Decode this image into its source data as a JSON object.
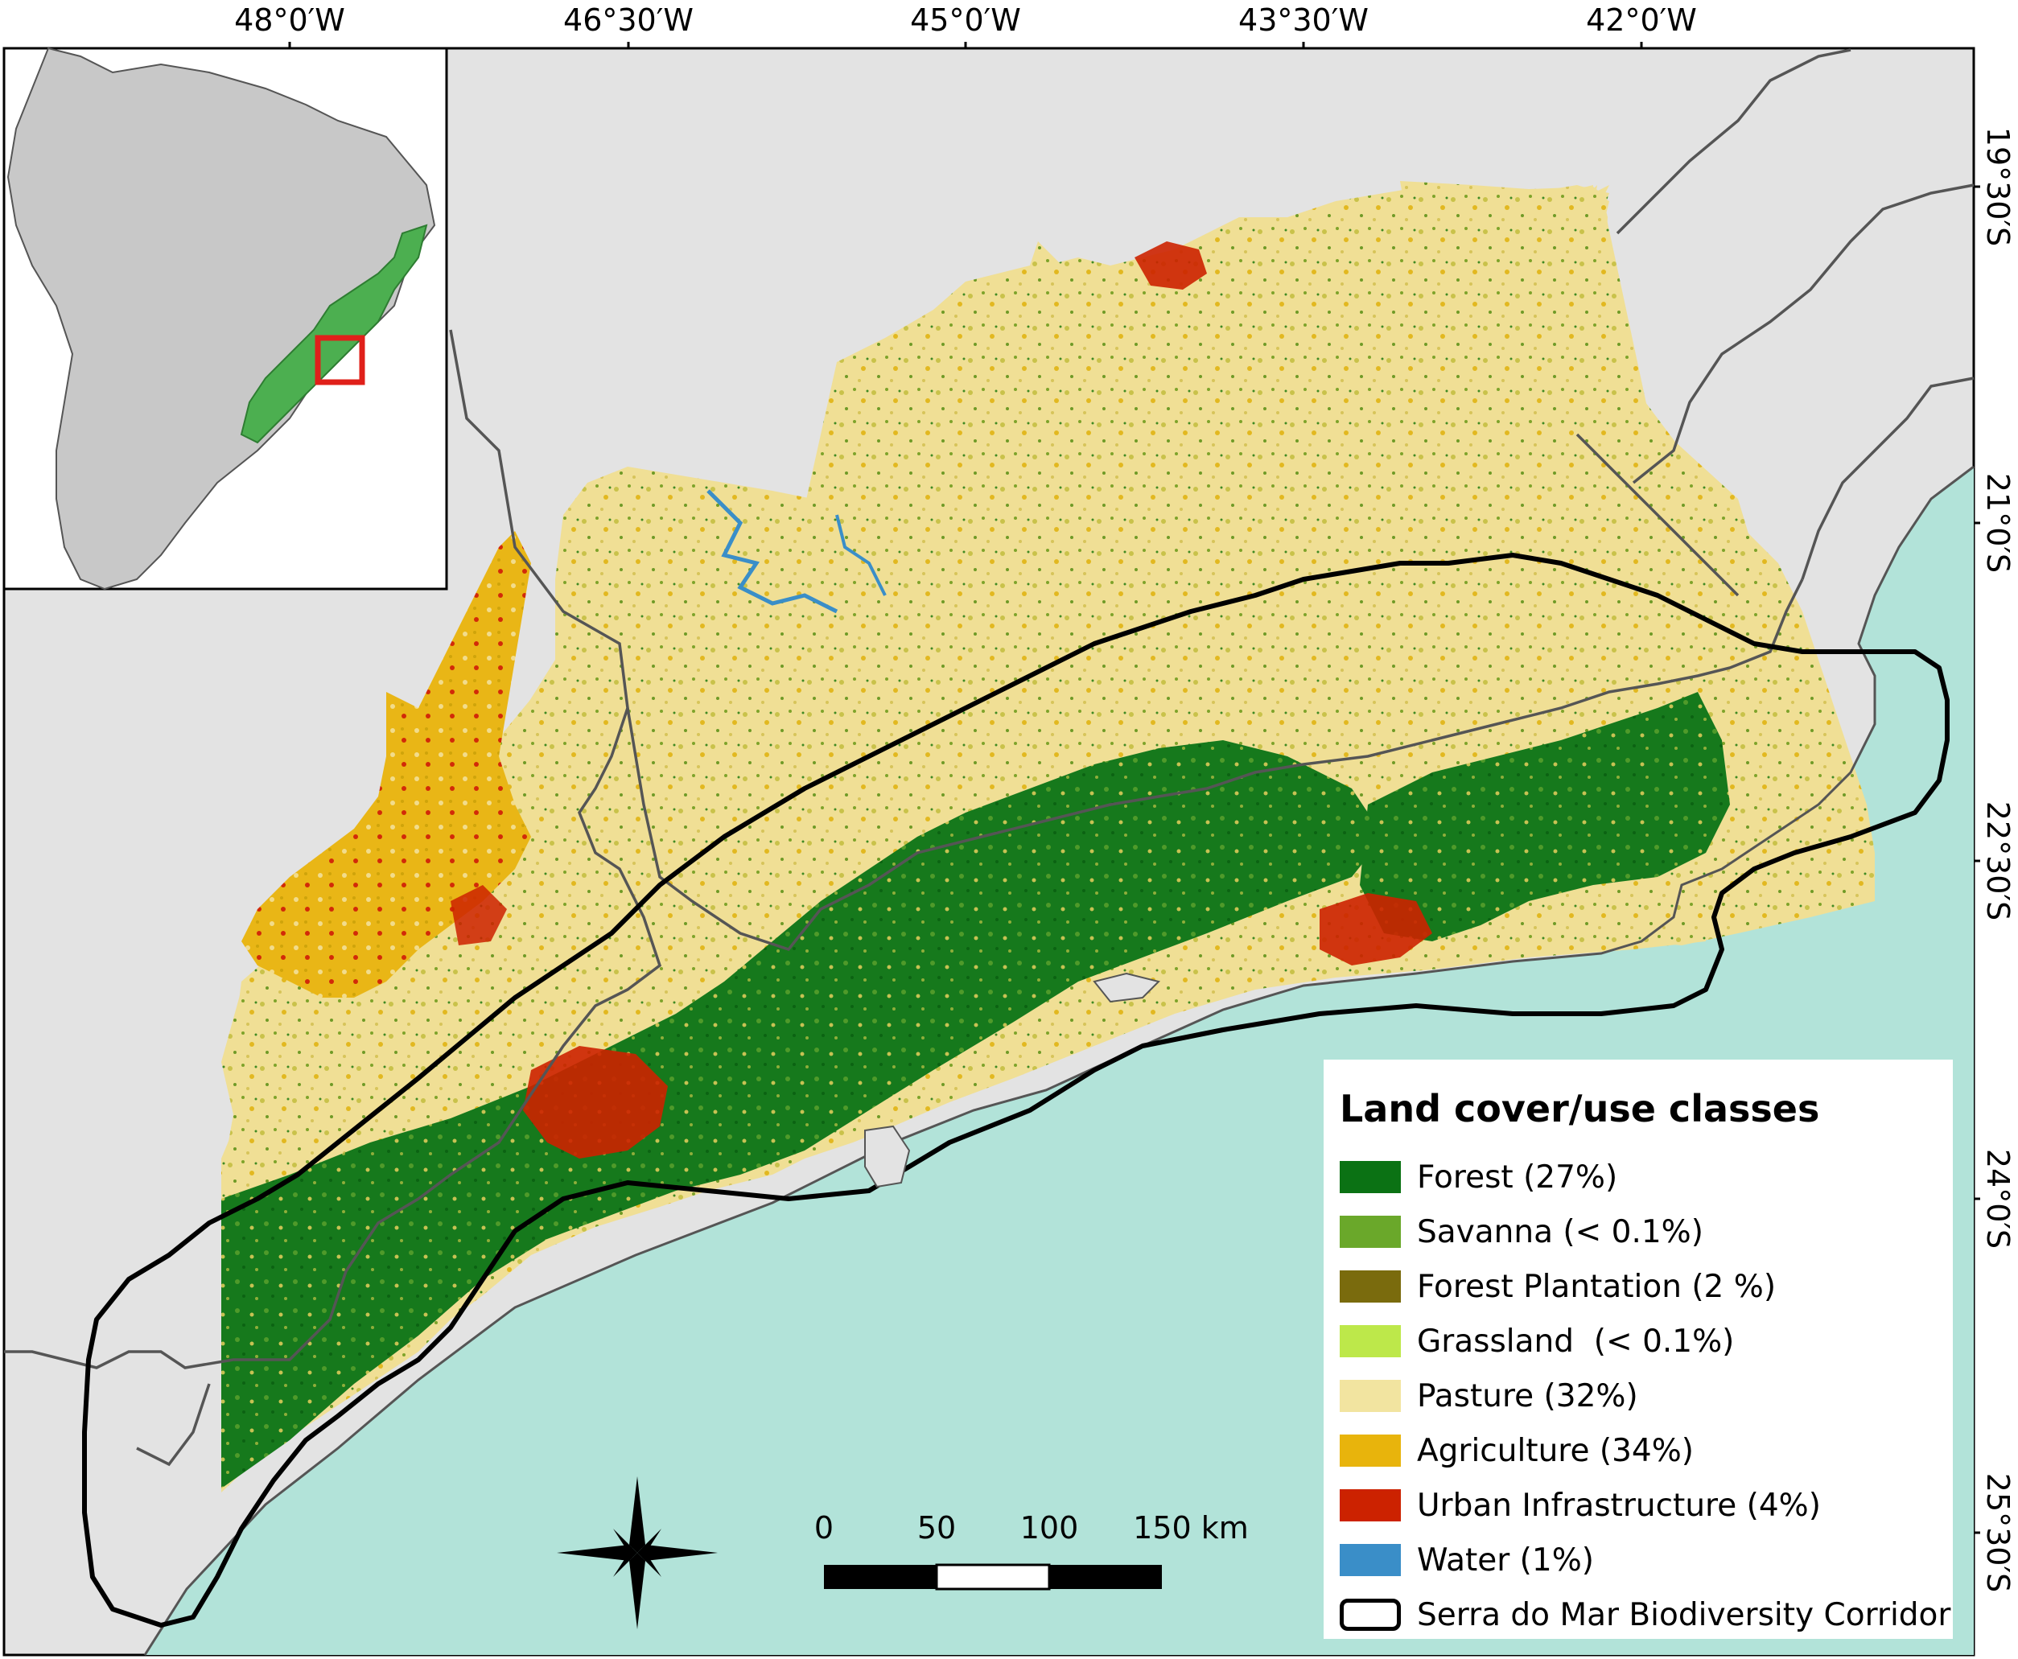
{
  "map": {
    "longitude_labels": [
      "48°0′W",
      "46°30′W",
      "45°0′W",
      "43°30′W",
      "42°0′W"
    ],
    "latitude_labels": [
      "19°30′S",
      "21°0′S",
      "22°30′S",
      "24°0′S",
      "25°30′S"
    ]
  },
  "legend": {
    "title": "Land cover/use classes",
    "items": [
      {
        "label": "Forest (27%)",
        "color": "#0b7214"
      },
      {
        "label": "Savanna (< 0.1%)",
        "color": "#6aa82a"
      },
      {
        "label": "Forest Plantation (2 %)",
        "color": "#7a6b0d"
      },
      {
        "label": "Grassland  (< 0.1%)",
        "color": "#bde84a"
      },
      {
        "label": "Pasture (32%)",
        "color": "#f2e4a0"
      },
      {
        "label": "Agriculture (34%)",
        "color": "#e8b40c"
      },
      {
        "label": "Urban Infrastructure (4%)",
        "color": "#cc2200"
      },
      {
        "label": "Water (1%)",
        "color": "#3a8ec8"
      },
      {
        "label": "Serra do Mar Biodiversity Corridor",
        "color": "#ffffff",
        "outline": true
      }
    ]
  },
  "scale_bar": {
    "labels": [
      "0",
      "50",
      "100",
      "150 km"
    ]
  },
  "colors": {
    "ocean": "#b2e3d9",
    "land": "#e3e3e3",
    "inset_land": "#c8c8c8",
    "atlantic_forest_biome": "#4caf50",
    "inset_extent_box": "#e0201a",
    "corridor_outline": "#000000",
    "boundaries": "#555555"
  },
  "icons": {
    "north_arrow": "compass-rose-icon"
  }
}
